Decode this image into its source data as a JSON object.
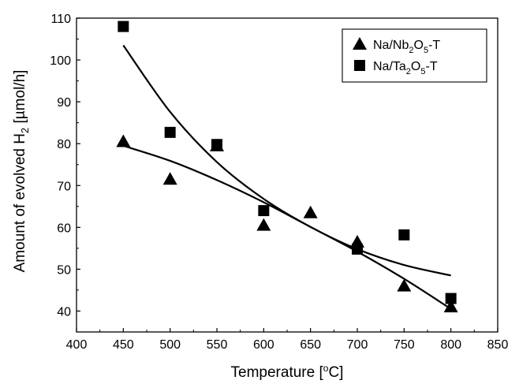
{
  "chart_data": {
    "type": "scatter",
    "xlabel": "Temperature [°C]",
    "ylabel": "Amount of evolved H2 [µmol/h]",
    "xlim": [
      400,
      850
    ],
    "ylim": [
      35,
      110
    ],
    "xticks": [
      400,
      450,
      500,
      550,
      600,
      650,
      700,
      750,
      800,
      850
    ],
    "yticks": [
      40,
      50,
      60,
      70,
      80,
      90,
      100,
      110
    ],
    "grid": false,
    "legend_position": "top-right",
    "series": [
      {
        "name": "Na/Nb2O5-T",
        "marker": "triangle",
        "color": "#000000",
        "points": [
          [
            450,
            80.5
          ],
          [
            500,
            71.5
          ],
          [
            550,
            79.5
          ],
          [
            600,
            60.5
          ],
          [
            650,
            63.5
          ],
          [
            700,
            56.5
          ],
          [
            750,
            46.0
          ],
          [
            800,
            41.0
          ]
        ],
        "fit": [
          [
            450,
            79.5
          ],
          [
            500,
            75.9
          ],
          [
            550,
            71.3
          ],
          [
            600,
            66.0
          ],
          [
            650,
            60.1
          ],
          [
            700,
            54.2
          ],
          [
            750,
            47.7
          ],
          [
            800,
            40.5
          ]
        ]
      },
      {
        "name": "Na/Ta2O5-T",
        "marker": "square",
        "color": "#000000",
        "points": [
          [
            450,
            108.0
          ],
          [
            500,
            82.7
          ],
          [
            550,
            79.8
          ],
          [
            600,
            64.0
          ],
          [
            700,
            54.8
          ],
          [
            750,
            58.2
          ],
          [
            800,
            43.0
          ]
        ],
        "fit": [
          [
            450,
            103.5
          ],
          [
            500,
            87.6
          ],
          [
            550,
            75.6
          ],
          [
            600,
            66.8
          ],
          [
            650,
            60.1
          ],
          [
            700,
            54.8
          ],
          [
            750,
            51.0
          ],
          [
            800,
            48.5
          ]
        ]
      }
    ]
  }
}
